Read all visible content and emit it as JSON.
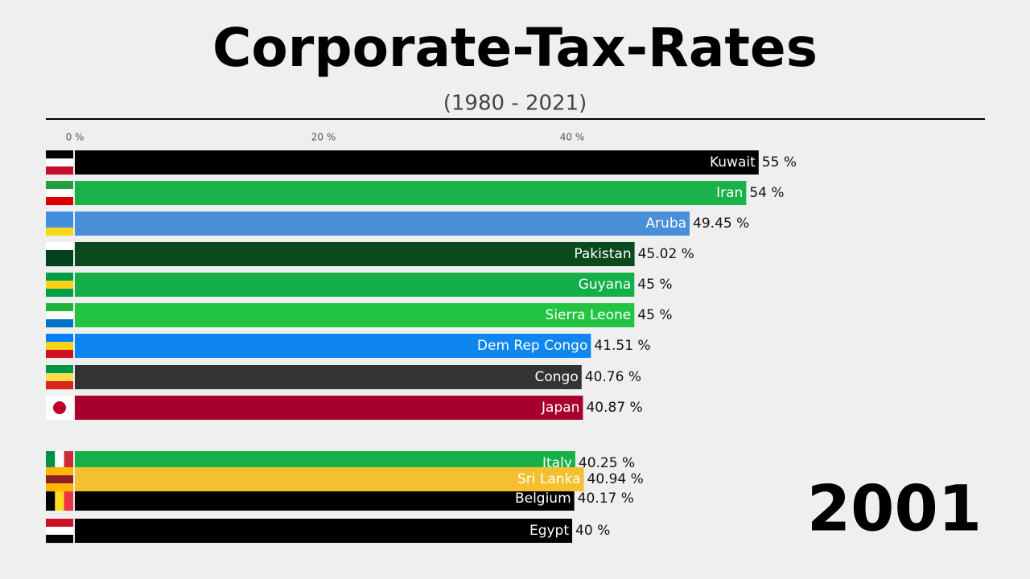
{
  "chart_data": {
    "type": "bar",
    "orientation": "horizontal",
    "title": "Corporate-Tax-Rates",
    "subtitle": "(1980 - 2021)",
    "annotation": "2001",
    "categories": [
      "Kuwait",
      "Iran",
      "Aruba",
      "Pakistan",
      "Guyana",
      "Sierra Leone",
      "Dem Rep Congo",
      "Congo",
      "Japan",
      "Italy",
      "Sri Lanka",
      "Belgium",
      "Egypt"
    ],
    "values": [
      55,
      54,
      49.45,
      45.02,
      45,
      45,
      41.51,
      40.76,
      40.87,
      40.25,
      40.94,
      40.17,
      40
    ],
    "value_labels": [
      "55 %",
      "54 %",
      "49.45 %",
      "45.02 %",
      "45 %",
      "45 %",
      "41.51 %",
      "40.76 %",
      "40.87 %",
      "40.25 %",
      "40.94 %",
      "40.17 %",
      "40 %"
    ],
    "colors": [
      "#000000",
      "#18b14a",
      "#4a90d9",
      "#0b4a1c",
      "#13b04a",
      "#22c442",
      "#0e86f0",
      "#333333",
      "#a8002c",
      "#16b04a",
      "#f5c030",
      "#000000",
      "#000000"
    ],
    "xlim": [
      0,
      73.2
    ],
    "xticks": [
      {
        "value": 0,
        "label": "0 %"
      },
      {
        "value": 20,
        "label": "20 %"
      },
      {
        "value": 40,
        "label": "40 %"
      }
    ]
  }
}
